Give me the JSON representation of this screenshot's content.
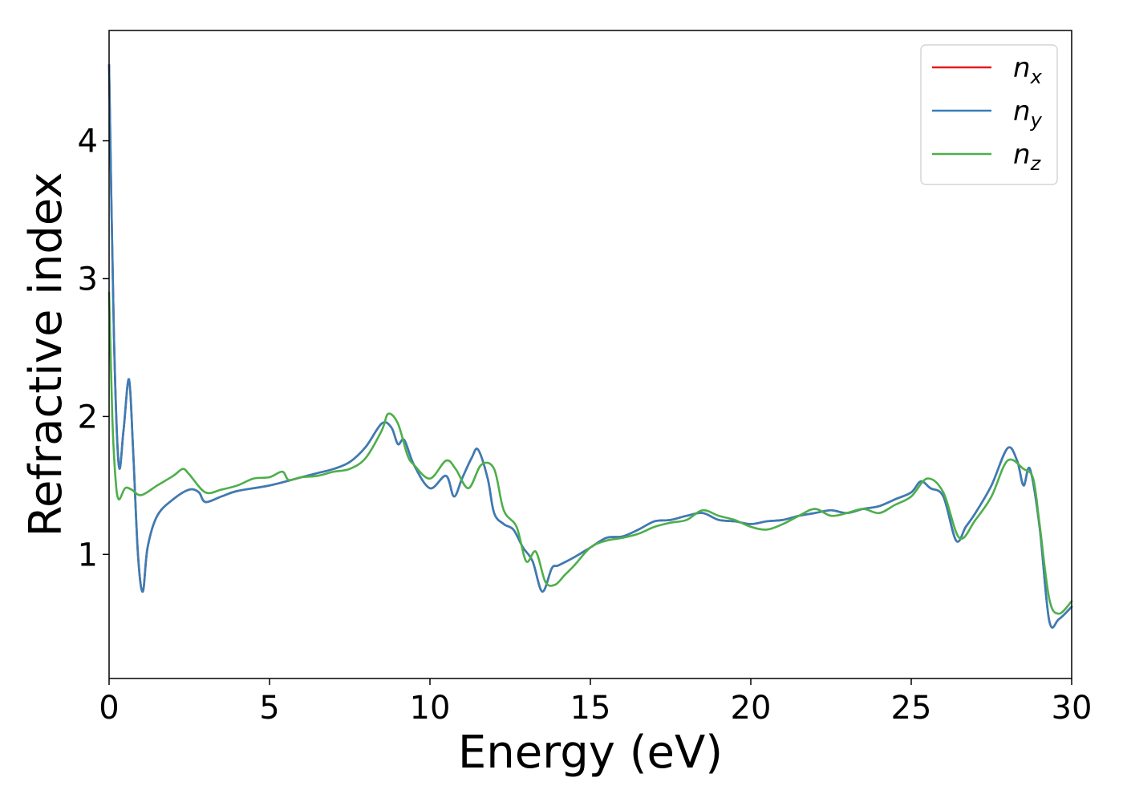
{
  "chart_data": {
    "type": "line",
    "xlabel": "Energy (eV)",
    "ylabel": "Refractive index",
    "xlim": [
      0,
      30
    ],
    "ylim": [
      0.1,
      4.8
    ],
    "xticks": [
      "0",
      "5",
      "10",
      "15",
      "20",
      "25",
      "30"
    ],
    "yticks": [
      "1",
      "2",
      "3",
      "4"
    ],
    "grid": false,
    "legend_position": "top-right",
    "series": [
      {
        "name": "n",
        "sub": "x",
        "color": "#e41a1c",
        "x": [
          0.0,
          0.15,
          0.3,
          0.45,
          0.62,
          0.75,
          0.9,
          1.05,
          1.2,
          1.5,
          2.0,
          2.5,
          2.8,
          3.0,
          3.5,
          4.0,
          5.0,
          6.0,
          6.5,
          7.0,
          7.5,
          8.0,
          8.5,
          8.8,
          9.0,
          9.2,
          9.5,
          10.0,
          10.5,
          10.75,
          11.0,
          11.3,
          11.5,
          11.8,
          12.0,
          12.3,
          12.6,
          12.9,
          13.2,
          13.5,
          13.8,
          14.0,
          14.5,
          15.0,
          15.5,
          16.0,
          16.5,
          17.0,
          17.5,
          18.0,
          18.5,
          19.0,
          19.5,
          20.0,
          20.5,
          21.0,
          21.5,
          22.0,
          22.5,
          23.0,
          23.5,
          24.0,
          24.5,
          25.0,
          25.3,
          25.6,
          26.0,
          26.4,
          26.7,
          27.0,
          27.5,
          28.0,
          28.3,
          28.5,
          28.7,
          29.0,
          29.3,
          29.6,
          30.0
        ],
        "values": [
          4.55,
          2.6,
          1.65,
          1.9,
          2.27,
          1.75,
          1.0,
          0.73,
          1.05,
          1.28,
          1.4,
          1.47,
          1.45,
          1.38,
          1.42,
          1.46,
          1.5,
          1.56,
          1.59,
          1.62,
          1.67,
          1.78,
          1.95,
          1.92,
          1.8,
          1.83,
          1.65,
          1.48,
          1.57,
          1.42,
          1.55,
          1.7,
          1.76,
          1.55,
          1.3,
          1.22,
          1.18,
          1.05,
          0.95,
          0.73,
          0.9,
          0.92,
          0.98,
          1.05,
          1.12,
          1.13,
          1.18,
          1.24,
          1.25,
          1.28,
          1.3,
          1.25,
          1.24,
          1.22,
          1.24,
          1.25,
          1.28,
          1.3,
          1.32,
          1.3,
          1.33,
          1.35,
          1.4,
          1.45,
          1.53,
          1.48,
          1.42,
          1.1,
          1.2,
          1.3,
          1.5,
          1.77,
          1.68,
          1.5,
          1.62,
          1.2,
          0.52,
          0.53,
          0.62
        ]
      },
      {
        "name": "n",
        "sub": "y",
        "color": "#377eb8",
        "x": [
          0.0,
          0.15,
          0.3,
          0.45,
          0.62,
          0.75,
          0.9,
          1.05,
          1.2,
          1.5,
          2.0,
          2.5,
          2.8,
          3.0,
          3.5,
          4.0,
          5.0,
          6.0,
          6.5,
          7.0,
          7.5,
          8.0,
          8.5,
          8.8,
          9.0,
          9.2,
          9.5,
          10.0,
          10.5,
          10.75,
          11.0,
          11.3,
          11.5,
          11.8,
          12.0,
          12.3,
          12.6,
          12.9,
          13.2,
          13.5,
          13.8,
          14.0,
          14.5,
          15.0,
          15.5,
          16.0,
          16.5,
          17.0,
          17.5,
          18.0,
          18.5,
          19.0,
          19.5,
          20.0,
          20.5,
          21.0,
          21.5,
          22.0,
          22.5,
          23.0,
          23.5,
          24.0,
          24.5,
          25.0,
          25.3,
          25.6,
          26.0,
          26.4,
          26.7,
          27.0,
          27.5,
          28.0,
          28.3,
          28.5,
          28.7,
          29.0,
          29.3,
          29.6,
          30.0
        ],
        "values": [
          4.55,
          2.6,
          1.65,
          1.9,
          2.27,
          1.75,
          1.0,
          0.73,
          1.05,
          1.28,
          1.4,
          1.47,
          1.45,
          1.38,
          1.42,
          1.46,
          1.5,
          1.56,
          1.59,
          1.62,
          1.67,
          1.78,
          1.95,
          1.92,
          1.8,
          1.83,
          1.65,
          1.48,
          1.57,
          1.42,
          1.55,
          1.7,
          1.76,
          1.55,
          1.3,
          1.22,
          1.18,
          1.05,
          0.95,
          0.73,
          0.9,
          0.92,
          0.98,
          1.05,
          1.12,
          1.13,
          1.18,
          1.24,
          1.25,
          1.28,
          1.3,
          1.25,
          1.24,
          1.22,
          1.24,
          1.25,
          1.28,
          1.3,
          1.32,
          1.3,
          1.33,
          1.35,
          1.4,
          1.45,
          1.53,
          1.48,
          1.42,
          1.1,
          1.2,
          1.3,
          1.5,
          1.77,
          1.68,
          1.5,
          1.62,
          1.2,
          0.52,
          0.53,
          0.62
        ]
      },
      {
        "name": "n",
        "sub": "z",
        "color": "#4daf4a",
        "x": [
          0.0,
          0.1,
          0.2,
          0.3,
          0.5,
          0.7,
          1.0,
          1.5,
          2.0,
          2.3,
          2.5,
          3.0,
          3.5,
          4.0,
          4.5,
          5.0,
          5.4,
          5.6,
          6.0,
          6.5,
          7.0,
          7.5,
          8.0,
          8.5,
          8.7,
          9.0,
          9.3,
          9.5,
          10.0,
          10.5,
          10.8,
          11.2,
          11.6,
          12.0,
          12.3,
          12.7,
          13.0,
          13.3,
          13.6,
          13.9,
          14.2,
          14.5,
          15.0,
          15.5,
          16.0,
          16.5,
          17.0,
          17.5,
          18.0,
          18.5,
          19.0,
          19.5,
          20.0,
          20.5,
          21.0,
          21.5,
          22.0,
          22.5,
          23.0,
          23.5,
          24.0,
          24.5,
          25.0,
          25.5,
          26.0,
          26.5,
          27.0,
          27.5,
          28.0,
          28.5,
          28.8,
          29.0,
          29.3,
          29.6,
          30.0
        ],
        "values": [
          2.9,
          2.0,
          1.55,
          1.4,
          1.48,
          1.47,
          1.43,
          1.5,
          1.57,
          1.62,
          1.58,
          1.45,
          1.47,
          1.5,
          1.55,
          1.56,
          1.6,
          1.54,
          1.56,
          1.57,
          1.6,
          1.62,
          1.7,
          1.9,
          2.02,
          1.95,
          1.72,
          1.65,
          1.55,
          1.68,
          1.62,
          1.48,
          1.65,
          1.62,
          1.32,
          1.2,
          0.95,
          1.02,
          0.8,
          0.78,
          0.85,
          0.92,
          1.05,
          1.1,
          1.12,
          1.15,
          1.2,
          1.23,
          1.25,
          1.32,
          1.28,
          1.25,
          1.2,
          1.18,
          1.22,
          1.28,
          1.33,
          1.28,
          1.3,
          1.33,
          1.3,
          1.36,
          1.42,
          1.55,
          1.45,
          1.12,
          1.25,
          1.42,
          1.68,
          1.62,
          1.55,
          1.22,
          0.68,
          0.57,
          0.66
        ]
      }
    ]
  }
}
